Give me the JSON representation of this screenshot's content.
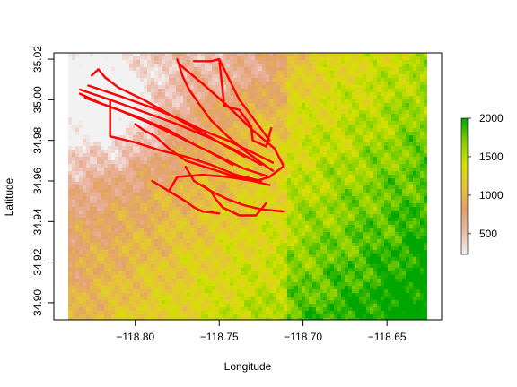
{
  "chart_data": {
    "type": "heatmap",
    "title": "",
    "xlabel": "Longitude",
    "ylabel": "Latitude",
    "xlim": [
      -118.84,
      -118.626
    ],
    "ylim": [
      34.896,
      35.024
    ],
    "x_ticks": [
      -118.8,
      -118.75,
      -118.7,
      -118.65
    ],
    "x_tick_labels": [
      "−118.80",
      "−118.75",
      "−118.70",
      "−118.65"
    ],
    "y_ticks": [
      34.9,
      34.92,
      34.94,
      34.96,
      34.98,
      35.0,
      35.02
    ],
    "y_tick_labels": [
      "34.90",
      "34.92",
      "34.94",
      "34.96",
      "34.98",
      "35.00",
      "35.02"
    ],
    "grid": false,
    "colorbar": {
      "range": [
        230,
        2000
      ],
      "ticks": [
        500,
        1000,
        1500,
        2000
      ],
      "tick_labels": [
        "500",
        "1000",
        "1500",
        "2000"
      ],
      "colors": [
        "#f2f2f2",
        "#ebb8a8",
        "#e2a06a",
        "#e6c33a",
        "#d4e000",
        "#7fcf00",
        "#00a600"
      ]
    },
    "track_color": "#ff0000",
    "tracks": [
      {
        "lon": [
          -118.833,
          -118.82,
          -118.8,
          -118.78,
          -118.765,
          -118.75,
          -118.735,
          -118.72
        ],
        "lat": [
          35.003,
          34.998,
          34.992,
          34.985,
          34.978,
          34.972,
          34.966,
          34.962
        ]
      },
      {
        "lon": [
          -118.833,
          -118.815,
          -118.795,
          -118.775,
          -118.755,
          -118.74,
          -118.725
        ],
        "lat": [
          35.005,
          35.0,
          34.994,
          34.988,
          34.981,
          34.975,
          34.968
        ]
      },
      {
        "lon": [
          -118.83,
          -118.81,
          -118.79,
          -118.77,
          -118.755,
          -118.742
        ],
        "lat": [
          35.001,
          34.995,
          34.988,
          34.98,
          34.974,
          34.968
        ]
      },
      {
        "lon": [
          -118.828,
          -118.81,
          -118.79,
          -118.772,
          -118.76,
          -118.745,
          -118.73,
          -118.718
        ],
        "lat": [
          35.007,
          35.002,
          34.996,
          34.99,
          34.985,
          34.98,
          34.974,
          34.969
        ]
      },
      {
        "lon": [
          -118.826,
          -118.822,
          -118.818,
          -118.81,
          -118.795,
          -118.78,
          -118.765,
          -118.75,
          -118.735
        ],
        "lat": [
          35.012,
          35.015,
          35.011,
          35.006,
          35.0,
          34.993,
          34.986,
          34.979,
          34.972
        ]
      },
      {
        "lon": [
          -118.775,
          -118.772,
          -118.768,
          -118.762,
          -118.755,
          -118.745,
          -118.735,
          -118.725,
          -118.718
        ],
        "lat": [
          35.02,
          35.012,
          35.005,
          34.998,
          34.99,
          34.982,
          34.975,
          34.969,
          34.965
        ]
      },
      {
        "lon": [
          -118.773,
          -118.76,
          -118.745,
          -118.73,
          -118.717,
          -118.712
        ],
        "lat": [
          35.017,
          35.008,
          34.997,
          34.985,
          34.976,
          34.968
        ]
      },
      {
        "lon": [
          -118.765,
          -118.755,
          -118.75,
          -118.738,
          -118.728,
          -118.72
        ],
        "lat": [
          35.019,
          35.019,
          35.02,
          35.0,
          34.989,
          34.98
        ]
      },
      {
        "lon": [
          -118.75,
          -118.748,
          -118.747,
          -118.738,
          -118.731,
          -118.73,
          -118.722,
          -118.719
        ],
        "lat": [
          35.02,
          35.005,
          34.997,
          34.995,
          34.987,
          34.98,
          34.977,
          34.986
        ]
      },
      {
        "lon": [
          -118.815,
          -118.815,
          -118.8,
          -118.785,
          -118.77,
          -118.755,
          -118.74,
          -118.725
        ],
        "lat": [
          35.0,
          34.982,
          34.979,
          34.975,
          34.972,
          34.968,
          34.963,
          34.96
        ]
      },
      {
        "lon": [
          -118.8,
          -118.795,
          -118.788,
          -118.78,
          -118.77,
          -118.755,
          -118.74,
          -118.728,
          -118.72,
          -118.712
        ],
        "lat": [
          34.988,
          34.985,
          34.982,
          34.976,
          34.97,
          34.966,
          34.962,
          34.96,
          34.962,
          34.967
        ]
      },
      {
        "lon": [
          -118.76,
          -118.755,
          -118.752,
          -118.748,
          -118.738,
          -118.728,
          -118.722
        ],
        "lat": [
          34.958,
          34.955,
          34.951,
          34.947,
          34.943,
          34.943,
          34.949
        ]
      },
      {
        "lon": [
          -118.77,
          -118.765,
          -118.755,
          -118.745,
          -118.735,
          -118.725,
          -118.712
        ],
        "lat": [
          34.967,
          34.96,
          34.955,
          34.951,
          34.948,
          34.946,
          34.945
        ]
      },
      {
        "lon": [
          -118.79,
          -118.78,
          -118.77,
          -118.765,
          -118.76,
          -118.75
        ],
        "lat": [
          34.96,
          34.955,
          34.95,
          34.947,
          34.945,
          34.944
        ]
      },
      {
        "lon": [
          -118.78,
          -118.775,
          -118.76,
          -118.745,
          -118.73,
          -118.72
        ],
        "lat": [
          34.955,
          34.962,
          34.963,
          34.962,
          34.96,
          34.958
        ]
      }
    ]
  }
}
